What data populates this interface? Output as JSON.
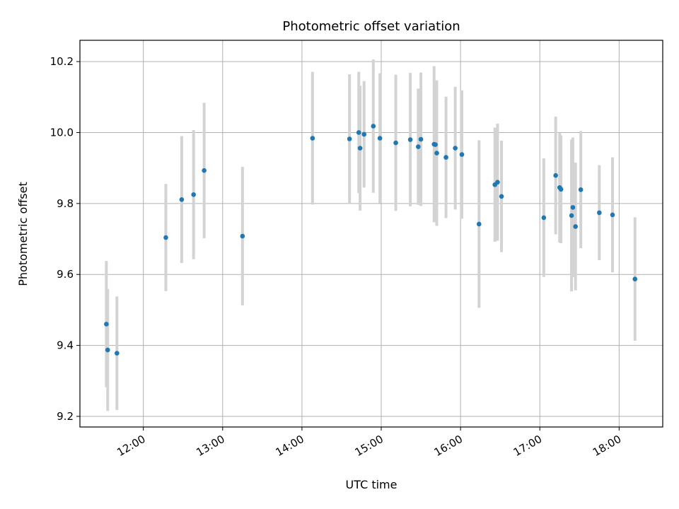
{
  "chart_data": {
    "type": "scatter",
    "title": "Photometric offset variation",
    "xlabel": "UTC time",
    "ylabel": "Photometric offset",
    "xlim": [
      "11:12",
      "18:33"
    ],
    "ylim": [
      9.17,
      10.26
    ],
    "grid": true,
    "x_ticks": [
      "12:00",
      "13:00",
      "14:00",
      "15:00",
      "16:00",
      "17:00",
      "18:00"
    ],
    "y_ticks": [
      "9.2",
      "9.4",
      "9.6",
      "9.8",
      "10.0",
      "10.2"
    ],
    "marker_color": "#1f77b4",
    "errorbar_color": "#d3d3d3",
    "points": [
      {
        "x": "11:32",
        "y": 9.46,
        "yerr": 0.178
      },
      {
        "x": "11:33",
        "y": 9.387,
        "yerr": 0.172
      },
      {
        "x": "11:40",
        "y": 9.378,
        "yerr": 0.16
      },
      {
        "x": "12:17",
        "y": 9.704,
        "yerr": 0.151
      },
      {
        "x": "12:29",
        "y": 9.811,
        "yerr": 0.179
      },
      {
        "x": "12:38",
        "y": 9.825,
        "yerr": 0.182
      },
      {
        "x": "12:46",
        "y": 9.893,
        "yerr": 0.191
      },
      {
        "x": "13:15",
        "y": 9.708,
        "yerr": 0.195
      },
      {
        "x": "14:08",
        "y": 9.984,
        "yerr": 0.187
      },
      {
        "x": "14:36",
        "y": 9.982,
        "yerr": 0.182
      },
      {
        "x": "14:43",
        "y": 10.0,
        "yerr": 0.171
      },
      {
        "x": "14:44",
        "y": 9.956,
        "yerr": 0.176
      },
      {
        "x": "14:47",
        "y": 9.995,
        "yerr": 0.15
      },
      {
        "x": "14:54",
        "y": 10.018,
        "yerr": 0.188
      },
      {
        "x": "14:59",
        "y": 9.984,
        "yerr": 0.183
      },
      {
        "x": "15:11",
        "y": 9.971,
        "yerr": 0.192
      },
      {
        "x": "15:22",
        "y": 9.98,
        "yerr": 0.188
      },
      {
        "x": "15:28",
        "y": 9.96,
        "yerr": 0.164
      },
      {
        "x": "15:30",
        "y": 9.981,
        "yerr": 0.188
      },
      {
        "x": "15:40",
        "y": 9.967,
        "yerr": 0.22
      },
      {
        "x": "15:41",
        "y": 9.966,
        "yerr": 0.181
      },
      {
        "x": "15:42",
        "y": 9.942,
        "yerr": 0.205
      },
      {
        "x": "15:49",
        "y": 9.93,
        "yerr": 0.171
      },
      {
        "x": "15:56",
        "y": 9.956,
        "yerr": 0.173
      },
      {
        "x": "16:01",
        "y": 9.938,
        "yerr": 0.181
      },
      {
        "x": "16:14",
        "y": 9.742,
        "yerr": 0.236
      },
      {
        "x": "16:26",
        "y": 9.853,
        "yerr": 0.161
      },
      {
        "x": "16:28",
        "y": 9.86,
        "yerr": 0.165
      },
      {
        "x": "16:31",
        "y": 9.82,
        "yerr": 0.157
      },
      {
        "x": "17:03",
        "y": 9.76,
        "yerr": 0.167
      },
      {
        "x": "17:12",
        "y": 9.879,
        "yerr": 0.166
      },
      {
        "x": "17:15",
        "y": 9.845,
        "yerr": 0.155
      },
      {
        "x": "17:16",
        "y": 9.84,
        "yerr": 0.152
      },
      {
        "x": "17:24",
        "y": 9.766,
        "yerr": 0.214
      },
      {
        "x": "17:25",
        "y": 9.789,
        "yerr": 0.197
      },
      {
        "x": "17:27",
        "y": 9.735,
        "yerr": 0.18
      },
      {
        "x": "17:31",
        "y": 9.839,
        "yerr": 0.165
      },
      {
        "x": "17:45",
        "y": 9.774,
        "yerr": 0.134
      },
      {
        "x": "17:55",
        "y": 9.768,
        "yerr": 0.162
      },
      {
        "x": "18:12",
        "y": 9.587,
        "yerr": 0.174
      }
    ]
  }
}
